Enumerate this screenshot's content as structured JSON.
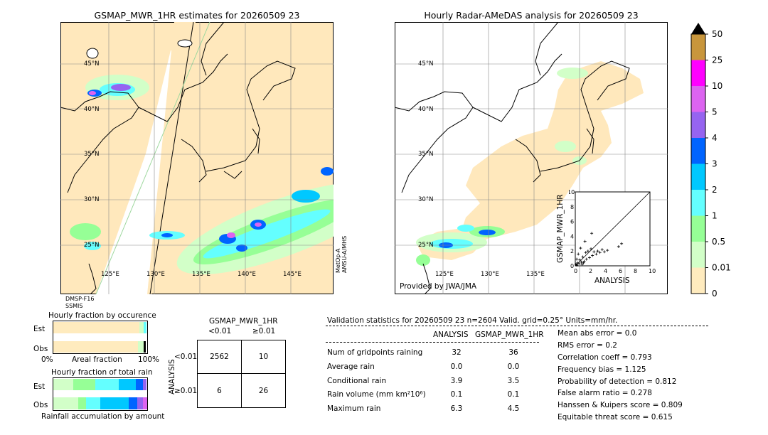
{
  "left_map": {
    "title": "GSMAP_MWR_1HR estimates for 20260509 23",
    "lat_labels": [
      "45°N",
      "40°N",
      "35°N",
      "30°N",
      "25°N"
    ],
    "lon_labels": [
      "125°E",
      "130°E",
      "135°E",
      "140°E",
      "145°E"
    ],
    "sat_right": "MetOp-A\nAMSU-A/MHS",
    "sat_right_1": "MetOp-A",
    "sat_right_2": "AMSU-A/MHS",
    "sat_bottom_1": "DMSP-F16",
    "sat_bottom_2": "SSMIS"
  },
  "right_map": {
    "title": "Hourly Radar-AMeDAS analysis for 20260509 23",
    "lat_labels": [
      "45°N",
      "40°N",
      "35°N",
      "30°N",
      "25°N"
    ],
    "lon_labels": [
      "125°E",
      "130°E",
      "135°E"
    ],
    "credit": "Provided by JWA/JMA"
  },
  "scatter": {
    "ylabel": "GSMAP_MWR_1HR",
    "xlabel": "ANALYSIS",
    "ticks": [
      "0",
      "2",
      "4",
      "6",
      "8",
      "10"
    ],
    "xlim": [
      0,
      10
    ],
    "ylim": [
      0,
      10
    ],
    "points": [
      [
        0.1,
        0.2
      ],
      [
        0.2,
        0.1
      ],
      [
        0.3,
        0.4
      ],
      [
        0.5,
        0.3
      ],
      [
        0.6,
        0.8
      ],
      [
        0.8,
        0.5
      ],
      [
        1.0,
        1.2
      ],
      [
        1.2,
        0.6
      ],
      [
        1.4,
        1.8
      ],
      [
        1.5,
        0.9
      ],
      [
        1.7,
        2.0
      ],
      [
        1.9,
        1.1
      ],
      [
        2.1,
        2.3
      ],
      [
        2.3,
        1.4
      ],
      [
        2.5,
        1.9
      ],
      [
        2.8,
        1.6
      ],
      [
        3.0,
        2.0
      ],
      [
        3.3,
        1.8
      ],
      [
        3.6,
        2.2
      ],
      [
        3.9,
        1.9
      ],
      [
        4.3,
        2.1
      ],
      [
        5.8,
        2.6
      ],
      [
        6.2,
        3.0
      ],
      [
        2.2,
        4.4
      ],
      [
        1.3,
        3.3
      ],
      [
        0.4,
        1.6
      ],
      [
        0.7,
        2.4
      ],
      [
        0.9,
        0.2
      ],
      [
        1.1,
        0.4
      ],
      [
        0.2,
        0.9
      ]
    ]
  },
  "colorbar": {
    "labels": [
      "50",
      "25",
      "10",
      "5",
      "4",
      "3",
      "2",
      "1",
      "0.5",
      "0.01",
      "0"
    ],
    "colors": [
      "#c8963c",
      "#ff00ff",
      "#dc64f0",
      "#9664f0",
      "#0064ff",
      "#00c8ff",
      "#64ffff",
      "#96ff96",
      "#d2ffc8",
      "#ffebbe"
    ]
  },
  "occurrence": {
    "title": "Hourly fraction by occurence",
    "est_label": "Est",
    "obs_label": "Obs",
    "axis_left": "0%",
    "axis_mid": "Areal fraction",
    "axis_right": "100%"
  },
  "total_rain": {
    "title": "Hourly fraction of total rain",
    "est_label": "Est",
    "obs_label": "Obs",
    "axis_caption": "Rainfall accumulation by amount"
  },
  "contingency": {
    "title": "GSMAP_MWR_1HR",
    "col_lt": "<0.01",
    "col_ge": "≥0.01",
    "row_axis": "ANALYSIS",
    "row_lt": "<0.01",
    "row_ge": "≥0.01",
    "cells": [
      "2562",
      "10",
      "6",
      "26"
    ]
  },
  "validation": {
    "header": "Validation statistics for 20260509 23  n=2604 Valid. grid=0.25° Units=mm/hr.",
    "col_analysis": "ANALYSIS",
    "col_gsmap": "GSMAP_MWR_1HR",
    "rows": [
      {
        "label": "Num of gridpoints raining",
        "analysis": "32",
        "gsmap": "36"
      },
      {
        "label": "Average rain",
        "analysis": "0.0",
        "gsmap": "0.0"
      },
      {
        "label": "Conditional rain",
        "analysis": "3.9",
        "gsmap": "3.5"
      },
      {
        "label": "Rain volume (mm km²10⁶)",
        "analysis": "0.1",
        "gsmap": "0.1"
      },
      {
        "label": "Maximum rain",
        "analysis": "6.3",
        "gsmap": "4.5"
      }
    ],
    "scores": [
      "Mean abs error =    0.0",
      "RMS error =    0.2",
      "Correlation coeff =  0.793",
      "Frequency bias =  1.125",
      "Probability of detection =  0.812",
      "False alarm ratio =  0.278",
      "Hanssen & Kuipers score =  0.809",
      "Equitable threat score =  0.615"
    ]
  }
}
